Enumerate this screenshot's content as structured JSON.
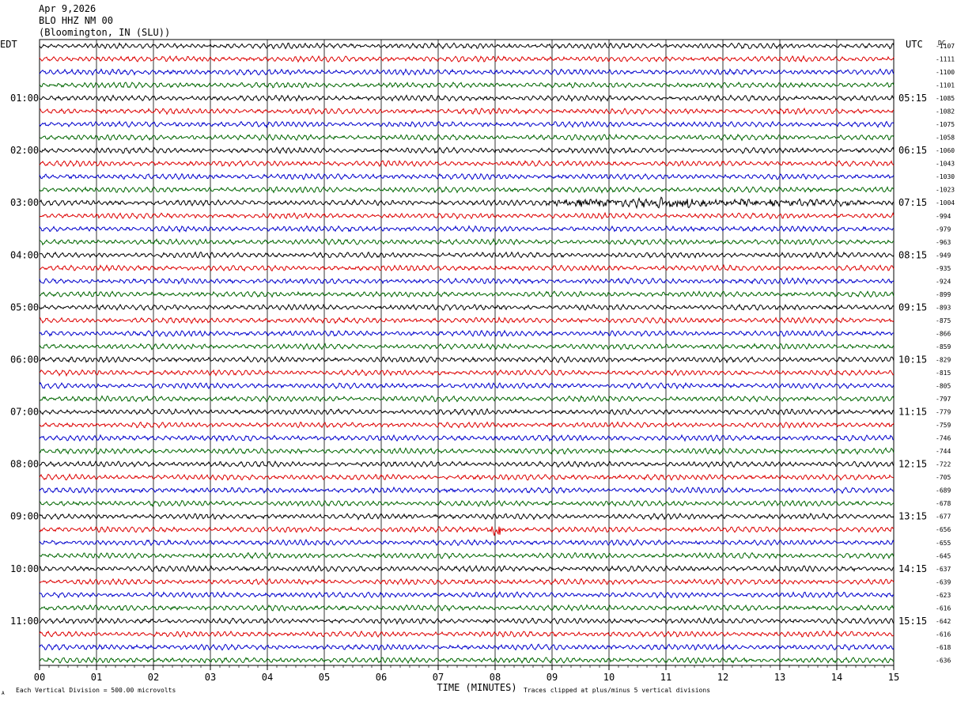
{
  "header": {
    "date": "Apr 9,2026",
    "station": "BLO HHZ NM 00",
    "location": "(Bloomington, IN (SLU))"
  },
  "left_tz_label": "EDT",
  "right_tz_label": "UTC",
  "dc_label": "DC",
  "footer": {
    "scale_note": "Each Vertical Division =  500.00 microvolts",
    "clip_note": "Traces clipped at plus/minus 5 vertical divisions",
    "corner_mark": "A"
  },
  "colors": {
    "trace_cycle": [
      "#000000",
      "#dd0000",
      "#0000cc",
      "#006600"
    ],
    "grid": "#000000"
  },
  "chart_data": {
    "type": "line",
    "title": "",
    "xlabel": "TIME (MINUTES)",
    "ylabel": "",
    "xlim": [
      0,
      15
    ],
    "x_ticks": [
      "00",
      "01",
      "02",
      "03",
      "04",
      "05",
      "06",
      "07",
      "08",
      "09",
      "10",
      "11",
      "12",
      "13",
      "14",
      "15"
    ],
    "rows_count": 48,
    "left_hour_labels": [
      {
        "row": 4,
        "label": "01:00"
      },
      {
        "row": 8,
        "label": "02:00"
      },
      {
        "row": 12,
        "label": "03:00"
      },
      {
        "row": 16,
        "label": "04:00"
      },
      {
        "row": 20,
        "label": "05:00"
      },
      {
        "row": 24,
        "label": "06:00"
      },
      {
        "row": 28,
        "label": "07:00"
      },
      {
        "row": 32,
        "label": "08:00"
      },
      {
        "row": 36,
        "label": "09:00"
      },
      {
        "row": 40,
        "label": "10:00"
      },
      {
        "row": 44,
        "label": "11:00"
      }
    ],
    "right_hour_labels": [
      {
        "row": 4,
        "label": "05:15"
      },
      {
        "row": 8,
        "label": "06:15"
      },
      {
        "row": 12,
        "label": "07:15"
      },
      {
        "row": 16,
        "label": "08:15"
      },
      {
        "row": 20,
        "label": "09:15"
      },
      {
        "row": 24,
        "label": "10:15"
      },
      {
        "row": 28,
        "label": "11:15"
      },
      {
        "row": 32,
        "label": "12:15"
      },
      {
        "row": 36,
        "label": "13:15"
      },
      {
        "row": 40,
        "label": "14:15"
      },
      {
        "row": 44,
        "label": "15:15"
      }
    ],
    "dc_offsets": [
      "-1107",
      "-1111",
      "-1100",
      "-1101",
      "-1085",
      "-1082",
      "-1075",
      "-1058",
      "-1060",
      "-1043",
      "-1030",
      "-1023",
      "-1004",
      "-994",
      "-979",
      "-963",
      "-949",
      "-935",
      "-924",
      "-899",
      "-893",
      "-875",
      "-866",
      "-859",
      "-829",
      "-815",
      "-805",
      "-797",
      "-779",
      "-759",
      "-746",
      "-744",
      "-722",
      "-705",
      "-689",
      "-678",
      "-677",
      "-656",
      "-655",
      "-645",
      "-637",
      "-639",
      "-623",
      "-616",
      "-642",
      "-616",
      "-618",
      "-636"
    ],
    "events": [
      {
        "row": 12,
        "start_min": 8.9,
        "end_min": 15.0,
        "peak_min": 11.0,
        "peak_amplitude_div": 0.6
      },
      {
        "row": 37,
        "start_min": 7.9,
        "end_min": 8.3,
        "peak_min": 8.0,
        "peak_amplitude_div": 1.2
      }
    ]
  }
}
